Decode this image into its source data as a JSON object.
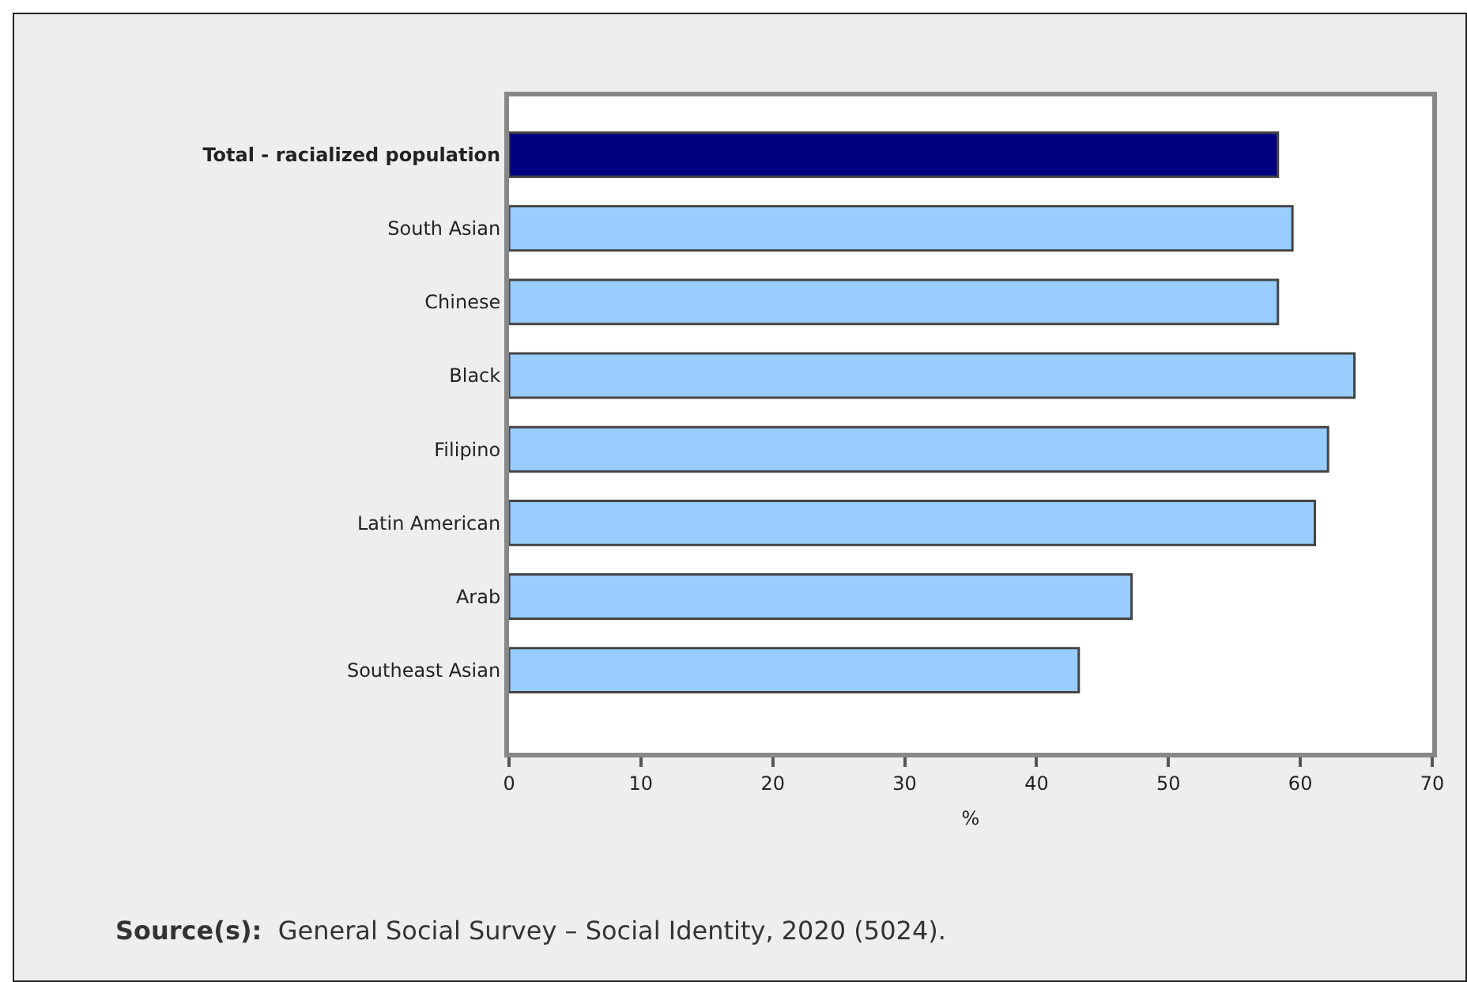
{
  "chart_data": {
    "type": "bar",
    "orientation": "horizontal",
    "categories": [
      "Total - racialized population",
      "South Asian",
      "Chinese",
      "Black",
      "Filipino",
      "Latin American",
      "Arab",
      "Southeast Asian"
    ],
    "values": [
      58.3,
      59.4,
      58.3,
      64.1,
      62.1,
      61.1,
      47.2,
      43.2
    ],
    "colors": [
      "#000080",
      "#99ccff",
      "#99ccff",
      "#99ccff",
      "#99ccff",
      "#99ccff",
      "#99ccff",
      "#99ccff"
    ],
    "xlabel": "%",
    "xlim": [
      0,
      70
    ],
    "xticks": [
      0,
      10,
      20,
      30,
      40,
      50,
      60,
      70
    ],
    "annotations": [
      "Source(s): General Social Survey – Social Identity, 2020 (5024)."
    ]
  }
}
